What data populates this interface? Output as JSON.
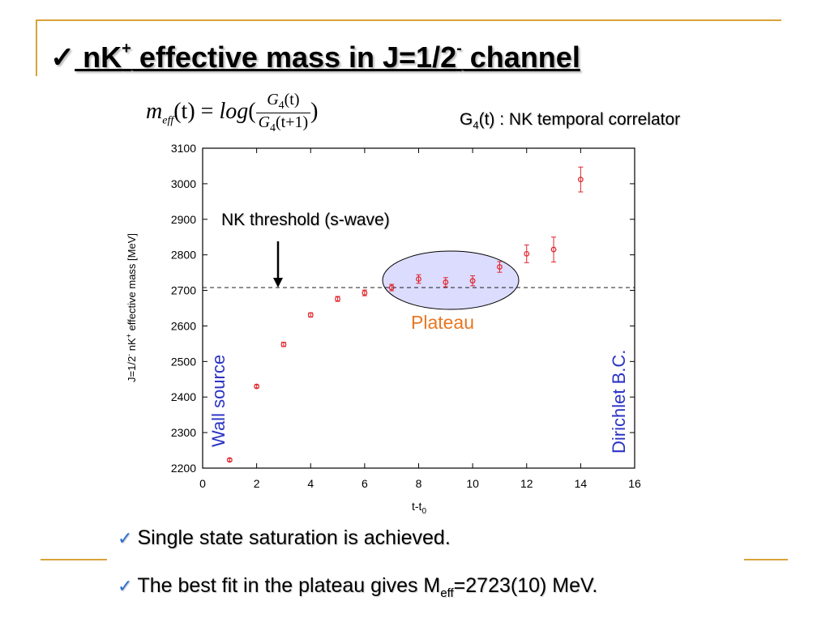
{
  "slide": {
    "title_check": "✓",
    "title_pre": " nK",
    "title_sup1": "+",
    "title_mid": " effective mass in J=1/2",
    "title_sup2": "-",
    "title_post": " channel",
    "formula": {
      "lhs_m": "m",
      "lhs_sub": "eff",
      "lhs_arg": "(t) = ",
      "log": "log",
      "open": "(",
      "close": ")",
      "num_G": "G",
      "num_sub": "4",
      "num_arg": "(t)",
      "den_G": "G",
      "den_sub": "4",
      "den_arg": "(t+1)"
    },
    "corr_note_pre": "G",
    "corr_note_sub": "4",
    "corr_note_post": "(t) : NK temporal correlator",
    "bullets": [
      {
        "check": "✓",
        "text": "Single state saturation is achieved."
      },
      {
        "check": "✓",
        "text_pre": "The best fit in the plateau gives M",
        "text_sub": "eff",
        "text_post": "=2723(10) MeV."
      }
    ],
    "colors": {
      "accent_line": "#d9a33a",
      "check": "#2f6fd6",
      "data": "#e0242b",
      "plateau_fill": "#dcdcff",
      "plateau_label": "#e87722",
      "side_label": "#2b33c4"
    }
  },
  "chart_data": {
    "type": "scatter",
    "x": [
      1,
      2,
      3,
      4,
      5,
      6,
      7,
      8,
      9,
      10,
      11,
      12,
      13,
      14
    ],
    "y": [
      2223,
      2430,
      2548,
      2631,
      2676,
      2693,
      2708,
      2732,
      2723,
      2727,
      2766,
      2803,
      2815,
      3012
    ],
    "yerr": [
      4,
      4,
      6,
      6,
      7,
      8,
      9,
      12,
      13,
      14,
      15,
      25,
      35,
      35
    ],
    "xlabel_main": "t-t",
    "xlabel_sub": "0",
    "ylabel_pre": "J=1/2",
    "ylabel_sup1": "-",
    "ylabel_mid": " nK",
    "ylabel_sup2": "+",
    "ylabel_post": " effective mass [MeV]",
    "xlim": [
      0,
      16
    ],
    "ylim": [
      2200,
      3100
    ],
    "xticks": [
      0,
      2,
      4,
      6,
      8,
      10,
      12,
      14,
      16
    ],
    "yticks": [
      2200,
      2300,
      2400,
      2500,
      2600,
      2700,
      2800,
      2900,
      3000,
      3100
    ],
    "threshold": 2708,
    "annotations": {
      "threshold_label": "NK threshold (s-wave)",
      "plateau_label": "Plateau",
      "left_label": "Wall source",
      "right_label": "Dirichlet B.C."
    },
    "plateau_range": [
      6.5,
      11.5
    ],
    "grid": false
  }
}
